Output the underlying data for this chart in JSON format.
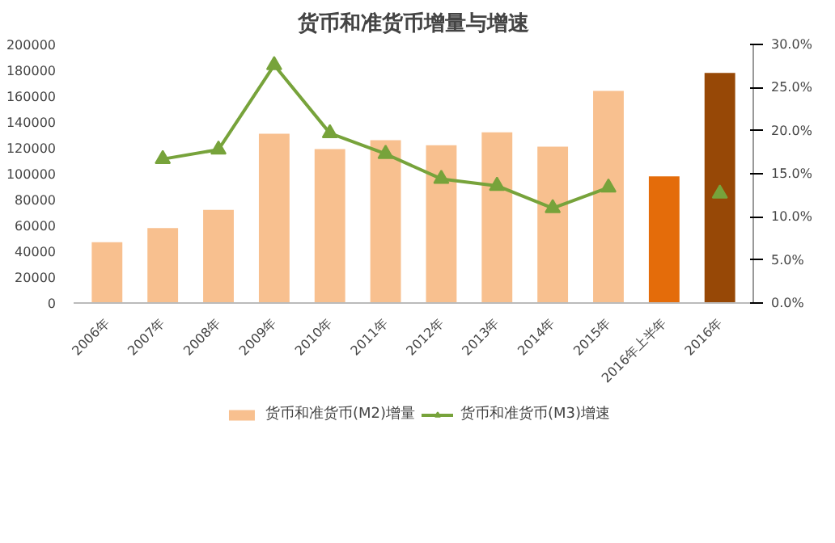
{
  "chart_data": {
    "type": "bar",
    "title": "货币和准货币增量与增速",
    "categories": [
      "2006年",
      "2007年",
      "2008年",
      "2009年",
      "2010年",
      "2011年",
      "2012年",
      "2013年",
      "2014年",
      "2015年",
      "2016年上半年",
      "2016年"
    ],
    "series": [
      {
        "name": "货币和准货币(M2)增量",
        "color": "#f8c08f",
        "colors": [
          "#f8c08f",
          "#f8c08f",
          "#f8c08f",
          "#f8c08f",
          "#f8c08f",
          "#f8c08f",
          "#f8c08f",
          "#f8c08f",
          "#f8c08f",
          "#f8c08f",
          "#e46c0a",
          "#974806"
        ],
        "values": [
          47000,
          58000,
          72000,
          131000,
          119000,
          126000,
          122000,
          132000,
          121000,
          164000,
          98000,
          178000
        ]
      },
      {
        "name": "货币和准货币(M3)增速",
        "type": "line",
        "axis": "y2",
        "color": "#77a33b",
        "marker": "triangle",
        "values": [
          null,
          16.7,
          17.8,
          27.6,
          19.7,
          17.3,
          14.4,
          13.6,
          11.0,
          13.4,
          null,
          12.7
        ]
      }
    ],
    "ylim": [
      0,
      200000
    ],
    "yticks": [
      0,
      20000,
      40000,
      60000,
      80000,
      100000,
      120000,
      140000,
      160000,
      180000,
      200000
    ],
    "y2lim": [
      0,
      30
    ],
    "y2ticks": [
      {
        "value": 0,
        "label": "0.0%"
      },
      {
        "value": 5,
        "label": "5.0%"
      },
      {
        "value": 10,
        "label": "10.0%"
      },
      {
        "value": 15,
        "label": "15.0%"
      },
      {
        "value": 20,
        "label": "20.0%"
      },
      {
        "value": 25,
        "label": "25.0%"
      },
      {
        "value": 30,
        "label": "30.0%"
      }
    ],
    "grid": false,
    "legend": "bottom"
  }
}
